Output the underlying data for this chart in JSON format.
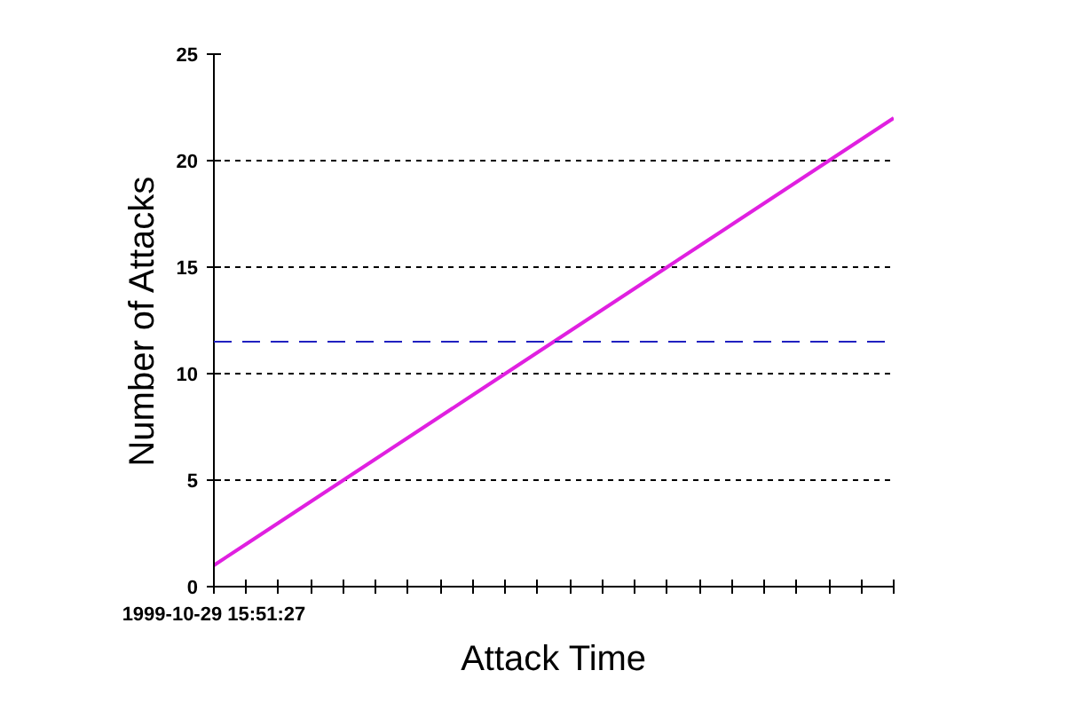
{
  "chart_data": {
    "type": "line",
    "xlabel": "Attack Time",
    "ylabel": "Number of Attacks",
    "categories": [
      "1999-10-29 15:51:27",
      null,
      null,
      null,
      null,
      null,
      null,
      null,
      null,
      null,
      null,
      null,
      null,
      null,
      null,
      null,
      null,
      null,
      null,
      null,
      null,
      null
    ],
    "series": [
      {
        "color": "#e020e0",
        "values": [
          1,
          2,
          3,
          4,
          5,
          6,
          7,
          8,
          9,
          10,
          11,
          12,
          13,
          14,
          15,
          16,
          17,
          18,
          19,
          20,
          21,
          22
        ]
      }
    ],
    "ylim": [
      0,
      25
    ],
    "yticks": [
      0,
      5,
      10,
      15,
      20,
      25
    ],
    "grid": "y",
    "marker": "none",
    "line_style": "solid",
    "ref_lines": [
      {
        "axis": "y",
        "value": 11.5,
        "color": "#2020c0",
        "line_style": "dashed"
      }
    ]
  }
}
